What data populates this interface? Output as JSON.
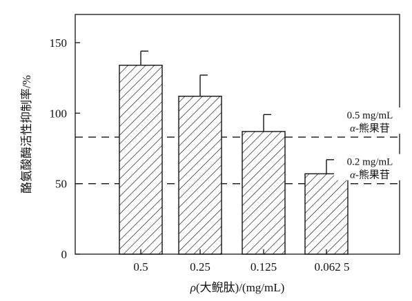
{
  "chart_data": {
    "type": "bar",
    "categories": [
      "0.5",
      "0.25",
      "0.125",
      "0.062 5"
    ],
    "series": [
      {
        "values": [
          134,
          112,
          87,
          57
        ],
        "errors": [
          10,
          15,
          12,
          10
        ]
      }
    ],
    "xlabel_prefix": "ρ",
    "xlabel_rest": "(大鲵肽)/(mg/mL)",
    "ylabel": "酪氨酸酶活性抑制率/%",
    "ylim": [
      0,
      170
    ],
    "yticks": [
      0,
      50,
      100,
      150
    ],
    "reference_lines": [
      {
        "value": 83,
        "label_line1": "0.5 mg/mL",
        "label_line2_prefix": "α",
        "label_line2_rest": "-熊果苷"
      },
      {
        "value": 50,
        "label_line1": "0.2 mg/mL",
        "label_line2_prefix": "α",
        "label_line2_rest": "-熊果苷"
      }
    ],
    "bar_pattern": "diagonal-hatch",
    "grid": false,
    "colors": {
      "ink": "#111111",
      "background": "#ffffff"
    }
  }
}
